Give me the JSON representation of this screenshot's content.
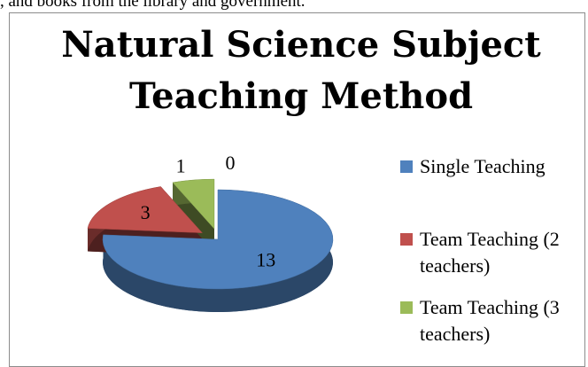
{
  "lead_text": ", and books from the library and government.",
  "chart_data": {
    "type": "pie3d",
    "title": "Natural Science Subject Teaching Method",
    "categories": [
      "Single Teaching",
      "Team Teaching (2 teachers)",
      "Team Teaching (3 teachers)",
      null
    ],
    "values": [
      13,
      3,
      1,
      0
    ],
    "colors": [
      "#4f81bd",
      "#c0504d",
      "#9bbb59",
      "#8064a2"
    ],
    "legend": "right"
  }
}
